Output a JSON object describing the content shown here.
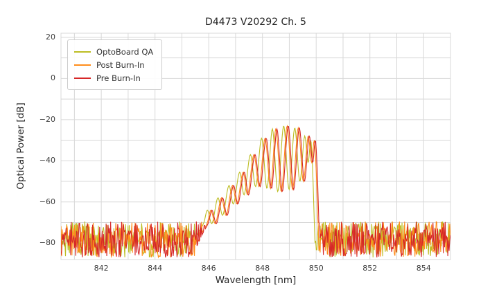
{
  "chart_data": {
    "type": "line",
    "title": "D4473 V20292 Ch. 5",
    "xlabel": "Wavelength [nm]",
    "ylabel": "Optical Power [dB]",
    "xlim": [
      840.5,
      855.0
    ],
    "ylim": [
      -88,
      22
    ],
    "xticks": [
      842,
      844,
      846,
      848,
      850,
      852,
      854
    ],
    "yticks": [
      20,
      0,
      -20,
      -40,
      -60,
      -80
    ],
    "grid": true,
    "grid_x_step_nm": 1,
    "grid_y_step_db": 10,
    "grid_color": "#d8d8d8",
    "plot_bg": "#ffffff",
    "legend": {
      "position": "upper left"
    },
    "noise": {
      "top_db": -69.5,
      "bottom_db": -87,
      "step_nm": 0.024
    },
    "signal_keypoints": [
      [
        845.5,
        -82
      ],
      [
        845.75,
        -75
      ],
      [
        845.95,
        -70
      ],
      [
        846.08,
        -64
      ],
      [
        846.25,
        -70.5
      ],
      [
        846.47,
        -58
      ],
      [
        846.65,
        -66.5
      ],
      [
        846.88,
        -52
      ],
      [
        847.05,
        -61
      ],
      [
        847.28,
        -45.5
      ],
      [
        847.45,
        -56.5
      ],
      [
        847.68,
        -37
      ],
      [
        847.88,
        -52.5
      ],
      [
        848.1,
        -29
      ],
      [
        848.3,
        -53.5
      ],
      [
        848.5,
        -24.5
      ],
      [
        848.7,
        -55
      ],
      [
        848.92,
        -23
      ],
      [
        849.12,
        -54
      ],
      [
        849.33,
        -24
      ],
      [
        849.52,
        -50
      ],
      [
        849.7,
        -28
      ],
      [
        849.83,
        -41
      ],
      [
        849.93,
        -30
      ],
      [
        850.0,
        -45
      ],
      [
        850.06,
        -70
      ],
      [
        850.1,
        -85
      ]
    ],
    "series": [
      {
        "name": "OptoBoard QA",
        "color": "#bcbd22",
        "x_offset_nm": -0.13,
        "seed": 101
      },
      {
        "name": "Post Burn-In",
        "color": "#ff8c1a",
        "x_offset_nm": 0.0,
        "seed": 202
      },
      {
        "name": "Pre Burn-In",
        "color": "#d62728",
        "x_offset_nm": 0.04,
        "seed": 303
      }
    ]
  }
}
